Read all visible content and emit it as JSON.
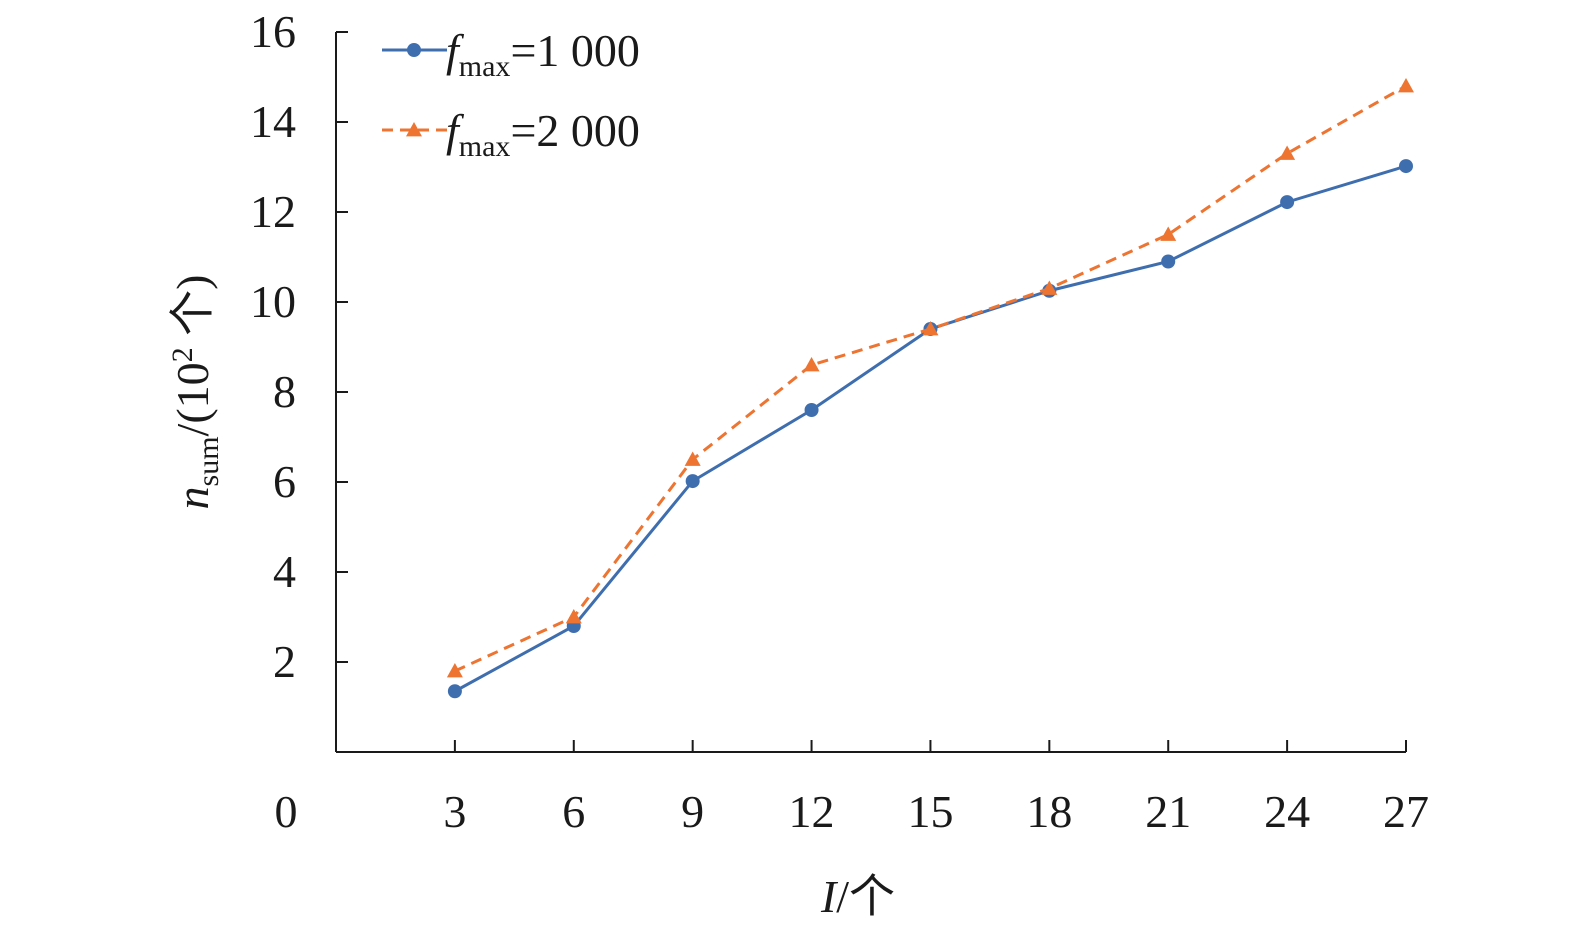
{
  "chart_data": {
    "type": "line",
    "x": [
      3,
      6,
      9,
      12,
      15,
      18,
      21,
      24,
      27
    ],
    "xticks": [
      "3",
      "6",
      "9",
      "12",
      "15",
      "18",
      "21",
      "24",
      "27"
    ],
    "yticks": [
      "2",
      "4",
      "6",
      "8",
      "10",
      "12",
      "14",
      "16"
    ],
    "origin_label": "0",
    "ylim": [
      0,
      16
    ],
    "xlim": [
      0,
      27
    ],
    "grid": false,
    "legend_position": "top-left",
    "xlabel": {
      "var": "I",
      "unit": "/个"
    },
    "ylabel": {
      "var": "n",
      "sub": "sum",
      "unit": "/(10",
      "sup": "2",
      "unit_end": " 个)"
    },
    "series": [
      {
        "name": {
          "var": "f",
          "sub": "max",
          "value": "=1 000"
        },
        "color": "#3f6eaf",
        "line_style": "solid",
        "marker": "circle",
        "values": [
          1.35,
          2.8,
          6.02,
          7.6,
          9.4,
          10.25,
          10.9,
          12.22,
          13.02
        ]
      },
      {
        "name": {
          "var": "f",
          "sub": "max",
          "value": "=2 000"
        },
        "color": "#ed7431",
        "line_style": "dashed",
        "marker": "triangle",
        "values": [
          1.8,
          3.0,
          6.5,
          8.6,
          9.4,
          10.3,
          11.5,
          13.3,
          14.8
        ]
      }
    ]
  }
}
